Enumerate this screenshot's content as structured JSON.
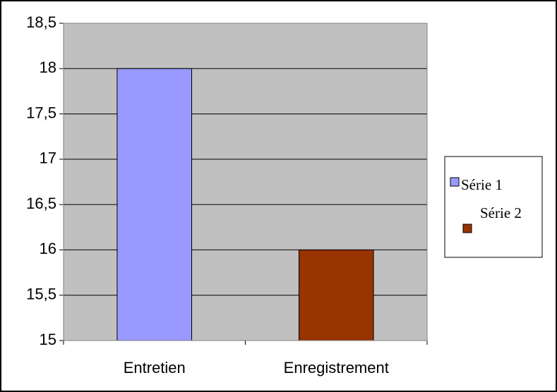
{
  "chart_data": {
    "type": "bar",
    "categories": [
      "Entretien",
      "Enregistrement"
    ],
    "series": [
      {
        "name": "Série 1",
        "color": "#9999ff",
        "values": [
          18,
          null
        ]
      },
      {
        "name": "Série 2",
        "color": "#993300",
        "values": [
          null,
          16
        ]
      }
    ],
    "ylim": [
      15,
      18.5
    ],
    "yticks": [
      15,
      {
        "value": 15.5,
        "label": "15,5"
      },
      16,
      {
        "value": 16.5,
        "label": "16,5"
      },
      17,
      {
        "value": 17.5,
        "label": "17,5"
      },
      18,
      {
        "value": 18.5,
        "label": "18,5"
      }
    ],
    "grid": true,
    "plot_background": "#c0c0c0",
    "legend": "right"
  }
}
